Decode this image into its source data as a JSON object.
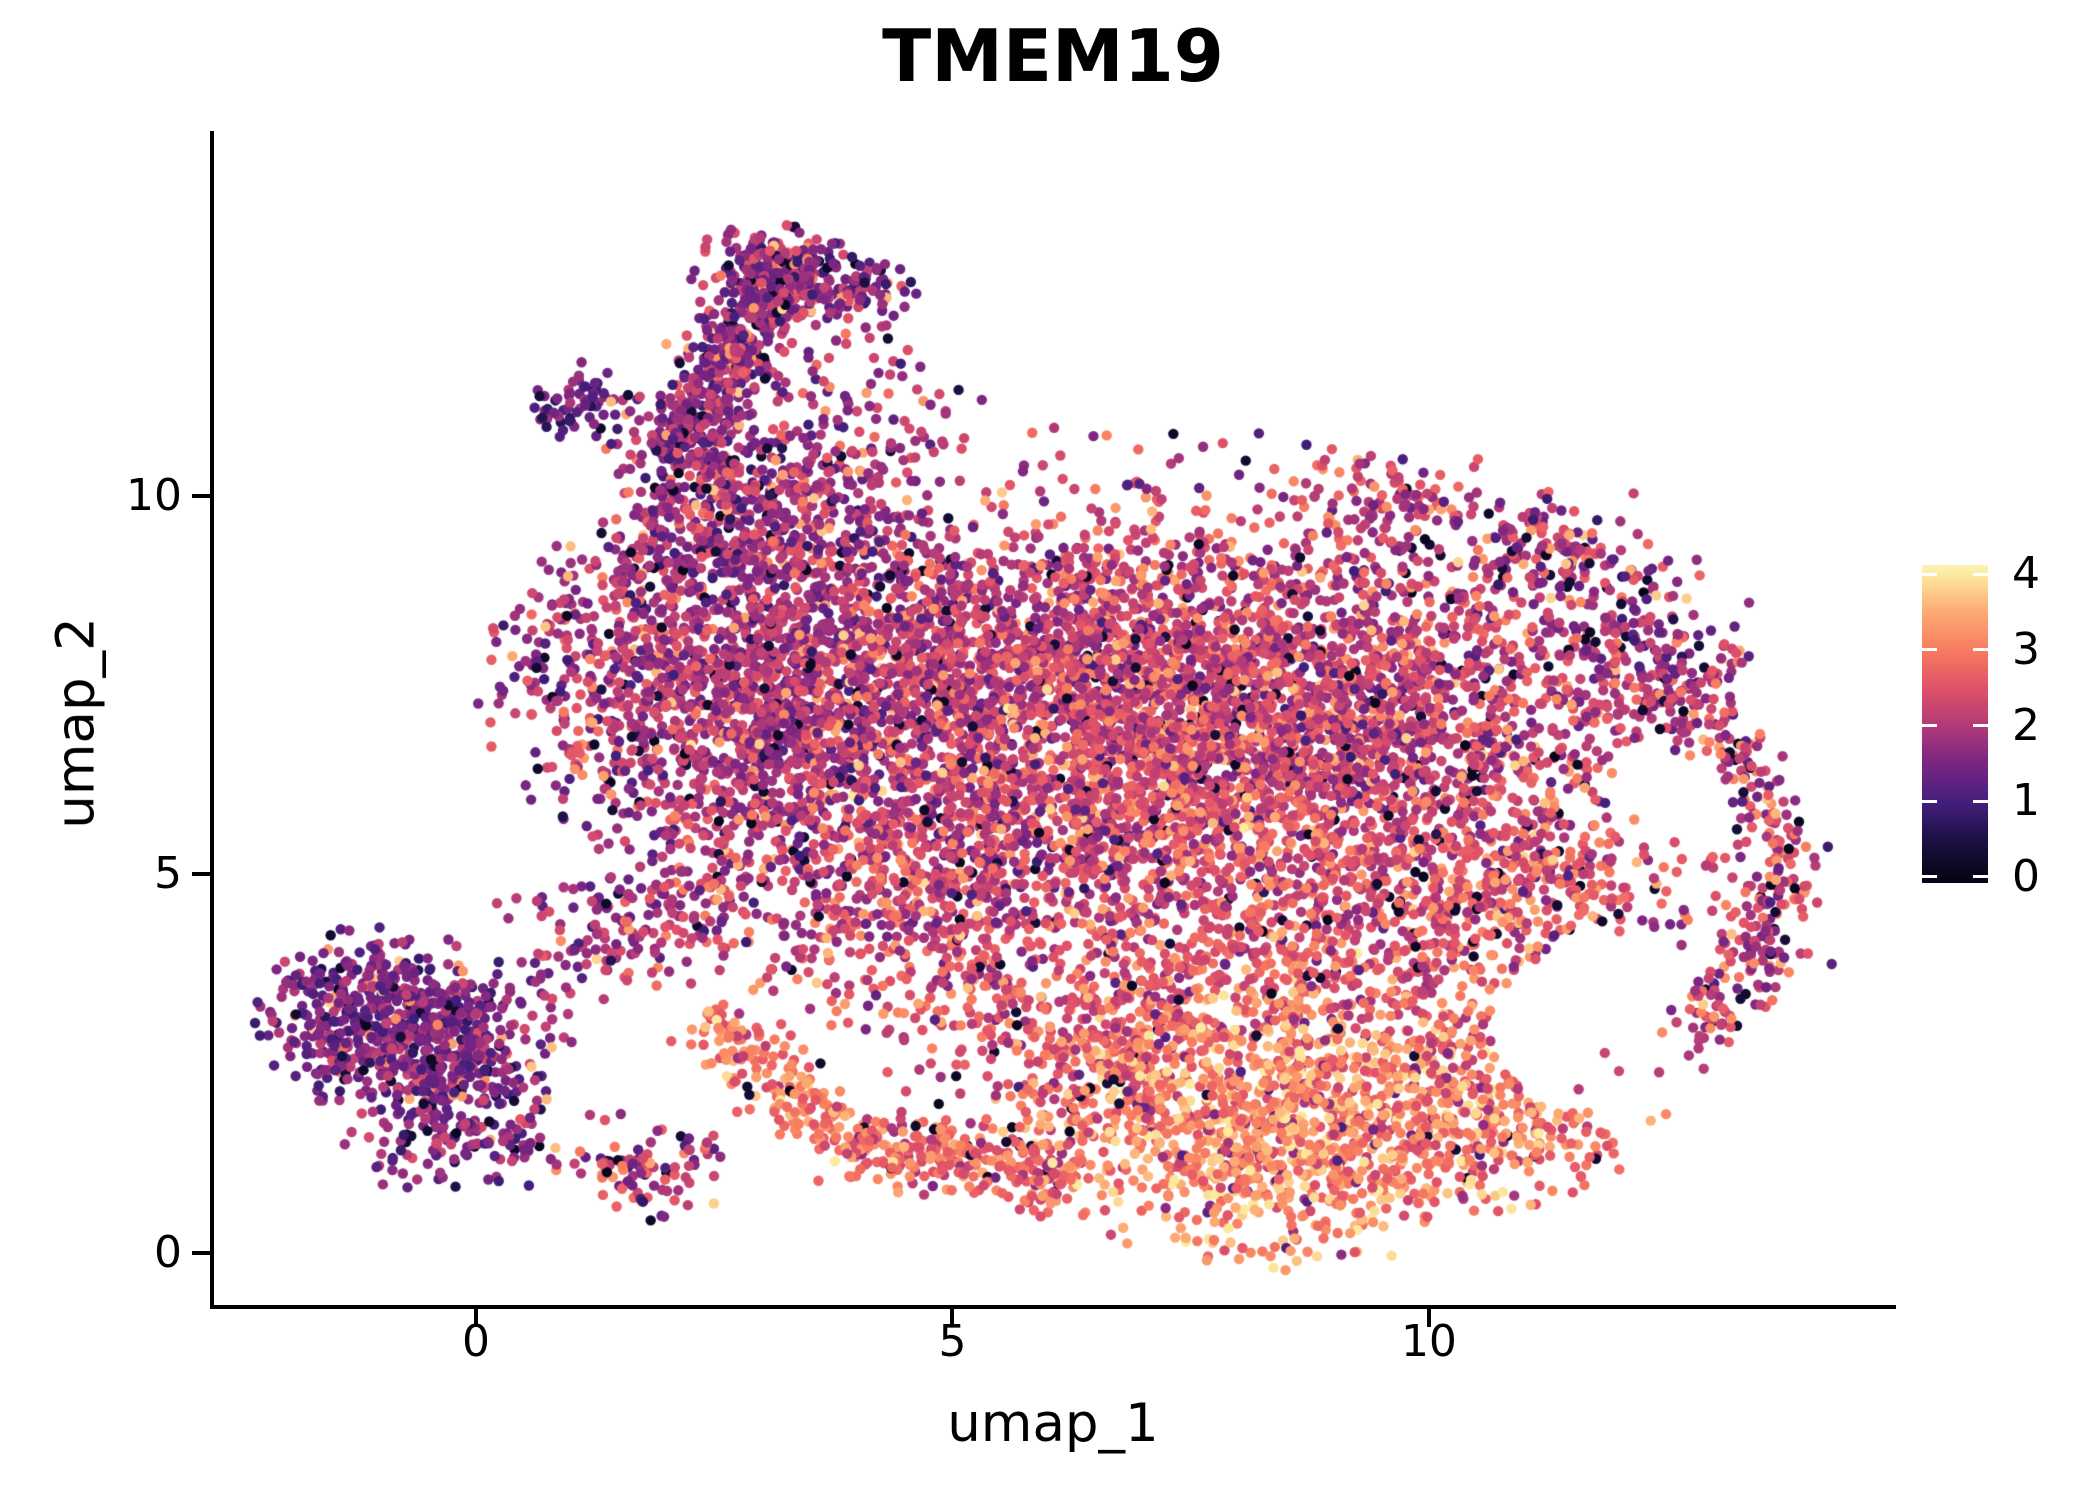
{
  "title": "TMEM19",
  "axes": {
    "xlabel": "umap_1",
    "ylabel": "umap_2",
    "x_ticks": [
      {
        "value": 0,
        "label": "0"
      },
      {
        "value": 5,
        "label": "5"
      },
      {
        "value": 10,
        "label": "10"
      }
    ],
    "y_ticks": [
      {
        "value": 0,
        "label": "0"
      },
      {
        "value": 5,
        "label": "5"
      },
      {
        "value": 10,
        "label": "10"
      }
    ]
  },
  "colorbar": {
    "vmin": -0.08,
    "vmax": 4.12,
    "ticks": [
      {
        "value": 4,
        "label": "4"
      },
      {
        "value": 3,
        "label": "3"
      },
      {
        "value": 2,
        "label": "2"
      },
      {
        "value": 1,
        "label": "1"
      },
      {
        "value": 0,
        "label": "0"
      }
    ]
  },
  "chart_data": {
    "type": "scatter",
    "title": "TMEM19",
    "xlabel": "umap_1",
    "ylabel": "umap_2",
    "x_range": [
      -2.77,
      14.88
    ],
    "y_range": [
      -0.69,
      14.79
    ],
    "x_tick_values": [
      0,
      5,
      10
    ],
    "y_tick_values": [
      0,
      5,
      10
    ],
    "legend_position": "right",
    "grid": false,
    "point_radius_px": 5.2,
    "seed": 11,
    "n_points_total": 14290,
    "color_scale": {
      "name": "magma-like",
      "domain": [
        0,
        4
      ],
      "stops": [
        {
          "v": 0.0,
          "color": "#070418"
        },
        {
          "v": 0.5,
          "color": "#1c1045"
        },
        {
          "v": 1.0,
          "color": "#451f7e"
        },
        {
          "v": 1.5,
          "color": "#7b2582"
        },
        {
          "v": 2.0,
          "color": "#b13a78"
        },
        {
          "v": 2.5,
          "color": "#e15268"
        },
        {
          "v": 3.0,
          "color": "#f87c60"
        },
        {
          "v": 3.5,
          "color": "#fcaa73"
        },
        {
          "v": 4.0,
          "color": "#fcea9f"
        },
        {
          "v": 4.12,
          "color": "#fdf2b6"
        }
      ]
    },
    "clusters": [
      {
        "kind": "gauss",
        "cx": -0.95,
        "cy": 3.1,
        "sx": 0.6,
        "sy": 0.55,
        "n": 480,
        "mu": 1.5,
        "sd": 0.42,
        "lo": 0.05,
        "hi": 0.03
      },
      {
        "kind": "gauss",
        "cx": -0.15,
        "cy": 2.25,
        "sx": 0.62,
        "sy": 0.75,
        "n": 420,
        "mu": 1.6,
        "sd": 0.45,
        "lo": 0.05,
        "hi": 0.04
      },
      {
        "kind": "gauss",
        "cx": 0.95,
        "cy": 3.9,
        "sx": 0.45,
        "sy": 0.55,
        "n": 70,
        "mu": 1.8,
        "sd": 0.5,
        "lo": 0.03,
        "hi": 0.03
      },
      {
        "kind": "line",
        "x1": 2.05,
        "y1": 10.55,
        "x2": 3.35,
        "y2": 13.25,
        "w": 0.23,
        "n": 520,
        "mu": 1.7,
        "sd": 0.5,
        "lo": 0.05,
        "hi": 0.05
      },
      {
        "kind": "gauss",
        "cx": 3.15,
        "cy": 12.95,
        "sx": 0.42,
        "sy": 0.3,
        "n": 160,
        "mu": 1.65,
        "sd": 0.5,
        "lo": 0.05,
        "hi": 0.04
      },
      {
        "kind": "gauss",
        "cx": 3.95,
        "cy": 12.7,
        "sx": 0.3,
        "sy": 0.22,
        "n": 90,
        "mu": 1.7,
        "sd": 0.5,
        "lo": 0.04,
        "hi": 0.06
      },
      {
        "kind": "gauss",
        "cx": 2.35,
        "cy": 10.35,
        "sx": 0.5,
        "sy": 0.4,
        "n": 150,
        "mu": 1.75,
        "sd": 0.5,
        "lo": 0.04,
        "hi": 0.05
      },
      {
        "kind": "gauss",
        "cx": 1.12,
        "cy": 11.3,
        "sx": 0.3,
        "sy": 0.25,
        "n": 70,
        "mu": 1.35,
        "sd": 0.4,
        "lo": 0.06,
        "hi": 0.02
      },
      {
        "kind": "gauss",
        "cx": 3.9,
        "cy": 11.2,
        "sx": 0.75,
        "sy": 0.65,
        "n": 110,
        "mu": 1.8,
        "sd": 0.55,
        "lo": 0.04,
        "hi": 0.06,
        "trunc": 1.9
      },
      {
        "kind": "gauss",
        "cx": 3.35,
        "cy": 9.9,
        "sx": 0.7,
        "sy": 0.45,
        "n": 220,
        "mu": 1.9,
        "sd": 0.5,
        "lo": 0.04,
        "hi": 0.05
      },
      {
        "kind": "gauss",
        "cx": 2.55,
        "cy": 9.15,
        "sx": 0.6,
        "sy": 0.5,
        "n": 160,
        "mu": 1.85,
        "sd": 0.5,
        "lo": 0.05,
        "hi": 0.04
      },
      {
        "kind": "gauss",
        "cx": 3.0,
        "cy": 7.5,
        "sx": 1.3,
        "sy": 1.15,
        "n": 1900,
        "mu": 1.95,
        "sd": 0.5,
        "lo": 0.04,
        "hi": 0.04
      },
      {
        "kind": "gauss",
        "cx": 6.6,
        "cy": 7.6,
        "sx": 1.6,
        "sy": 1.15,
        "n": 2300,
        "mu": 2.2,
        "sd": 0.52,
        "lo": 0.04,
        "hi": 0.05
      },
      {
        "kind": "gauss",
        "cx": 5.3,
        "cy": 5.0,
        "sx": 1.5,
        "sy": 1.0,
        "n": 1250,
        "mu": 2.2,
        "sd": 0.55,
        "lo": 0.04,
        "hi": 0.05
      },
      {
        "kind": "gauss",
        "cx": 9.7,
        "cy": 7.0,
        "sx": 1.35,
        "sy": 1.2,
        "n": 1500,
        "mu": 2.15,
        "sd": 0.55,
        "lo": 0.05,
        "hi": 0.05
      },
      {
        "kind": "gauss",
        "cx": 9.3,
        "cy": 4.3,
        "sx": 1.2,
        "sy": 0.95,
        "n": 800,
        "mu": 2.5,
        "sd": 0.5,
        "lo": 0.04,
        "hi": 0.06
      },
      {
        "kind": "gauss",
        "cx": 8.6,
        "cy": 1.7,
        "sx": 1.3,
        "sy": 0.85,
        "n": 1250,
        "mu": 3.1,
        "sd": 0.5,
        "lo": 0.05,
        "hi": 0.08,
        "loRange": [
          1.0,
          1.9
        ],
        "hiRange": [
          3.6,
          4.0
        ]
      },
      {
        "kind": "gauss",
        "cx": 6.3,
        "cy": 2.9,
        "sx": 1.05,
        "sy": 0.8,
        "n": 500,
        "mu": 2.55,
        "sd": 0.5,
        "lo": 0.04,
        "hi": 0.06
      },
      {
        "kind": "line",
        "x1": 4.0,
        "y1": 1.45,
        "x2": 6.3,
        "y2": 0.95,
        "w": 0.28,
        "n": 260,
        "mu": 2.65,
        "sd": 0.5,
        "lo": 0.05,
        "hi": 0.07
      },
      {
        "kind": "line",
        "x1": 2.35,
        "y1": 3.1,
        "x2": 4.1,
        "y2": 1.35,
        "w": 0.22,
        "n": 200,
        "mu": 2.95,
        "sd": 0.45,
        "lo": 0.04,
        "hi": 0.1
      },
      {
        "kind": "gauss",
        "cx": 1.75,
        "cy": 1.15,
        "sx": 0.45,
        "sy": 0.32,
        "n": 110,
        "mu": 2.1,
        "sd": 0.6,
        "lo": 0.05,
        "hi": 0.08
      },
      {
        "kind": "arc",
        "cx": 11.8,
        "cy": 5.0,
        "rx": 1.85,
        "ry": 2.3,
        "a1": -70,
        "a2": 80,
        "jit": 0.22,
        "n": 380,
        "mu": 2.15,
        "sd": 0.55,
        "lo": 0.06,
        "hi": 0.05
      },
      {
        "kind": "line",
        "x1": 10.8,
        "y1": 9.6,
        "x2": 13.1,
        "y2": 7.5,
        "w": 0.38,
        "n": 300,
        "mu": 2.0,
        "sd": 0.55,
        "lo": 0.07,
        "hi": 0.04
      },
      {
        "kind": "gauss",
        "cx": 7.3,
        "cy": 6.4,
        "sx": 0.95,
        "sy": 0.75,
        "n": 420,
        "mu": 2.6,
        "sd": 0.45,
        "lo": 0.03,
        "hi": 0.06
      },
      {
        "kind": "gauss",
        "cx": 10.8,
        "cy": 1.9,
        "sx": 0.75,
        "sy": 0.65,
        "n": 220,
        "mu": 2.7,
        "sd": 0.5,
        "lo": 0.05,
        "hi": 0.06
      },
      {
        "kind": "gauss",
        "cx": 11.6,
        "cy": 4.85,
        "sx": 0.8,
        "sy": 0.45,
        "n": 160,
        "mu": 2.35,
        "sd": 0.5,
        "lo": 0.05,
        "hi": 0.05
      },
      {
        "kind": "gauss",
        "cx": 1.9,
        "cy": 4.5,
        "sx": 0.5,
        "sy": 0.45,
        "n": 130,
        "mu": 2.0,
        "sd": 0.5,
        "lo": 0.04,
        "hi": 0.04
      },
      {
        "kind": "gauss",
        "cx": 9.6,
        "cy": 9.9,
        "sx": 0.6,
        "sy": 0.35,
        "n": 120,
        "mu": 2.1,
        "sd": 0.5,
        "lo": 0.05,
        "hi": 0.04
      },
      {
        "kind": "gauss",
        "cx": 6.5,
        "cy": 10.55,
        "sx": 2.0,
        "sy": 0.35,
        "n": 40,
        "mu": 2.0,
        "sd": 0.55,
        "lo": 0.05,
        "hi": 0.05,
        "trunc": 1.6
      }
    ],
    "holes": [
      {
        "cx": 11.7,
        "cy": 2.95,
        "rx": 1.05,
        "ry": 1.1,
        "p": 0.93
      },
      {
        "cx": 12.5,
        "cy": 6.05,
        "rx": 0.62,
        "ry": 0.85,
        "p": 0.88
      },
      {
        "cx": 6.05,
        "cy": 3.85,
        "rx": 0.55,
        "ry": 0.5,
        "p": 0.6
      },
      {
        "cx": 4.8,
        "cy": 2.4,
        "rx": 0.95,
        "ry": 0.6,
        "p": 0.55
      },
      {
        "cx": 1.4,
        "cy": 2.35,
        "rx": 0.65,
        "ry": 1.1,
        "p": 0.85
      },
      {
        "cx": -0.5,
        "cy": 0.2,
        "rx": 1.7,
        "ry": 0.6,
        "p": 0.9
      }
    ]
  }
}
